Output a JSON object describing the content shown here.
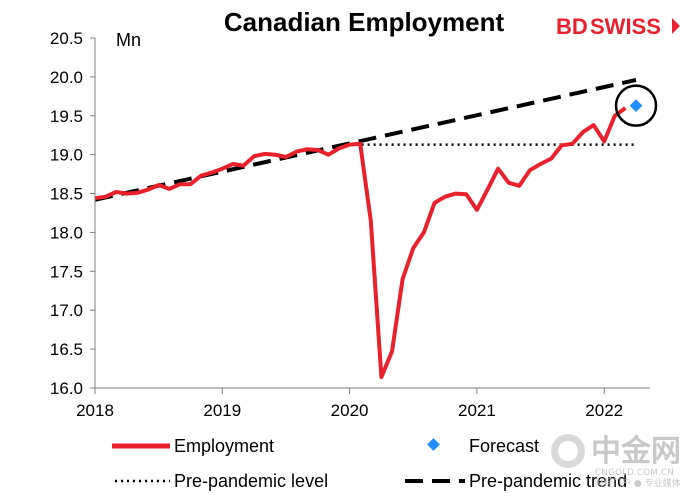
{
  "chart_data": {
    "type": "line",
    "title": "Canadian Employment",
    "ylabel": "Mn",
    "xlabel": "",
    "xlim": [
      2018.0,
      2022.38
    ],
    "ylim": [
      16.0,
      20.5
    ],
    "yticks": [
      "16.0",
      "16.5",
      "17.0",
      "17.5",
      "18.0",
      "18.5",
      "19.0",
      "19.5",
      "20.0",
      "20.5"
    ],
    "xticks": [
      "2018",
      "2019",
      "2020",
      "2021",
      "2022"
    ],
    "grid": false,
    "legend_position": "bottom",
    "series": [
      {
        "name": "Employment",
        "style": "solid",
        "color": "#e8212c",
        "x": [
          2018.0,
          2018.0833,
          2018.1667,
          2018.25,
          2018.3333,
          2018.4167,
          2018.5,
          2018.5833,
          2018.6667,
          2018.75,
          2018.8333,
          2018.9167,
          2019.0,
          2019.0833,
          2019.1667,
          2019.25,
          2019.3333,
          2019.4167,
          2019.5,
          2019.5833,
          2019.6667,
          2019.75,
          2019.8333,
          2019.9167,
          2020.0,
          2020.0833,
          2020.1667,
          2020.25,
          2020.3333,
          2020.4167,
          2020.5,
          2020.5833,
          2020.6667,
          2020.75,
          2020.8333,
          2020.9167,
          2021.0,
          2021.0833,
          2021.1667,
          2021.25,
          2021.3333,
          2021.4167,
          2021.5,
          2021.5833,
          2021.6667,
          2021.75,
          2021.8333,
          2021.9167,
          2022.0,
          2022.0833,
          2022.1667
        ],
        "values": [
          18.44,
          18.46,
          18.52,
          18.5,
          18.51,
          18.55,
          18.61,
          18.56,
          18.62,
          18.62,
          18.73,
          18.77,
          18.82,
          18.88,
          18.86,
          18.98,
          19.01,
          19.0,
          18.97,
          19.04,
          19.07,
          19.06,
          19.0,
          19.08,
          19.13,
          19.14,
          18.15,
          16.14,
          16.47,
          17.4,
          17.8,
          18.0,
          18.38,
          18.46,
          18.5,
          18.49,
          18.29,
          18.55,
          18.82,
          18.64,
          18.6,
          18.8,
          18.88,
          18.95,
          19.12,
          19.14,
          19.29,
          19.38,
          19.17,
          19.5,
          19.6
        ]
      },
      {
        "name": "Forecast",
        "style": "marker",
        "color": "#1e90ff",
        "x": [
          2022.25
        ],
        "values": [
          19.63
        ]
      },
      {
        "name": "Pre-pandemic level",
        "style": "dotted",
        "color": "#000000",
        "x": [
          2020.0,
          2022.25
        ],
        "values": [
          19.13,
          19.13
        ]
      },
      {
        "name": "Pre-pandemic trend",
        "style": "dashed",
        "color": "#000000",
        "x": [
          2018.0,
          2022.25
        ],
        "values": [
          18.42,
          19.96
        ]
      }
    ],
    "annotations": [
      {
        "type": "circle",
        "x": 2022.25,
        "y": 19.63
      }
    ]
  },
  "branding": {
    "logo_bd": "BD",
    "logo_swiss": "SWISS",
    "watermark_cn": "中金网",
    "watermark_domain": "CNGOLD.COM.CN",
    "watermark_tag": "财经门户 ● 专业媒体"
  }
}
